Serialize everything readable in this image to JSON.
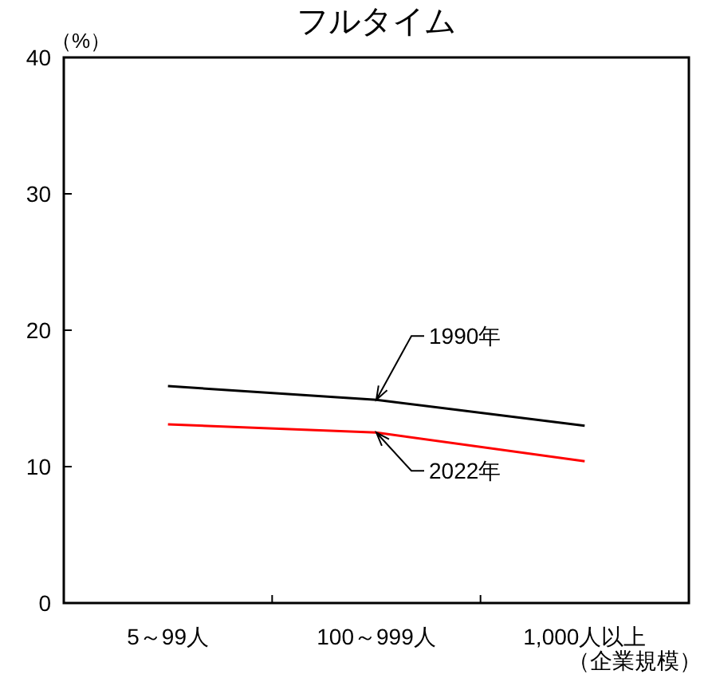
{
  "chart_data": {
    "type": "line",
    "title": "フルタイム",
    "ylabel": "（%）",
    "xlabel": "（企業規模）",
    "categories": [
      "5～99人",
      "100～999人",
      "1,000人以上"
    ],
    "series": [
      {
        "name": "1990年",
        "color": "#000000",
        "values": [
          15.9,
          14.9,
          13.0
        ]
      },
      {
        "name": "2022年",
        "color": "#ff0000",
        "values": [
          13.1,
          12.5,
          10.4
        ]
      }
    ],
    "ylim": [
      0,
      40
    ],
    "yticks": [
      0,
      10,
      20,
      30,
      40
    ],
    "grid": false,
    "legend": false,
    "marker": "none",
    "line_style": "solid"
  }
}
